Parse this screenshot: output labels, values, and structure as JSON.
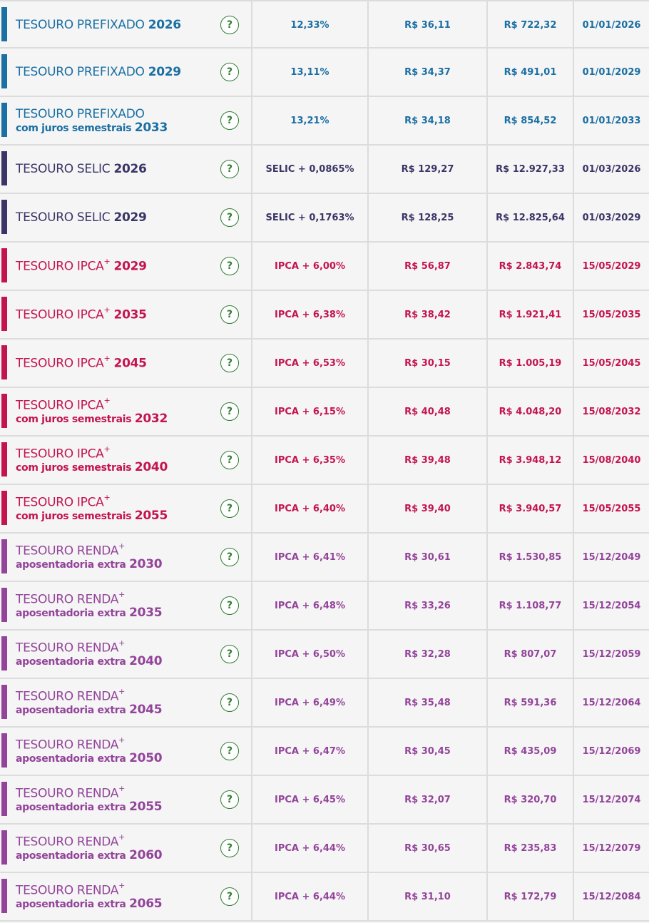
{
  "colors": {
    "prefixado": "#1a6fa3",
    "selic": "#3a3566",
    "ipca": "#c4144f",
    "renda": "#93449a",
    "help": "#2e7d32"
  },
  "icons": {
    "help": "question-mark-circle-icon"
  },
  "rows": [
    {
      "group": "prefixado",
      "title": "TESOURO PREFIXADO",
      "sup": "",
      "sub": "",
      "year": "2026",
      "rate": "12,33%",
      "min": "R$ 36,11",
      "unit": "R$ 722,32",
      "due": "01/01/2026",
      "help": "?"
    },
    {
      "group": "prefixado",
      "title": "TESOURO PREFIXADO",
      "sup": "",
      "sub": "",
      "year": "2029",
      "rate": "13,11%",
      "min": "R$ 34,37",
      "unit": "R$ 491,01",
      "due": "01/01/2029",
      "help": "?"
    },
    {
      "group": "prefixado",
      "title": "TESOURO PREFIXADO",
      "sup": "",
      "sub": "com juros semestrais",
      "year": "2033",
      "rate": "13,21%",
      "min": "R$ 34,18",
      "unit": "R$ 854,52",
      "due": "01/01/2033",
      "help": "?"
    },
    {
      "group": "selic",
      "title": "TESOURO SELIC",
      "sup": "",
      "sub": "",
      "year": "2026",
      "rate": "SELIC + 0,0865%",
      "min": "R$ 129,27",
      "unit": "R$ 12.927,33",
      "due": "01/03/2026",
      "help": "?"
    },
    {
      "group": "selic",
      "title": "TESOURO SELIC",
      "sup": "",
      "sub": "",
      "year": "2029",
      "rate": "SELIC + 0,1763%",
      "min": "R$ 128,25",
      "unit": "R$ 12.825,64",
      "due": "01/03/2029",
      "help": "?"
    },
    {
      "group": "ipca",
      "title": "TESOURO IPCA",
      "sup": "+",
      "sub": "",
      "year": "2029",
      "rate": "IPCA + 6,00%",
      "min": "R$ 56,87",
      "unit": "R$ 2.843,74",
      "due": "15/05/2029",
      "help": "?"
    },
    {
      "group": "ipca",
      "title": "TESOURO IPCA",
      "sup": "+",
      "sub": "",
      "year": "2035",
      "rate": "IPCA + 6,38%",
      "min": "R$ 38,42",
      "unit": "R$ 1.921,41",
      "due": "15/05/2035",
      "help": "?"
    },
    {
      "group": "ipca",
      "title": "TESOURO IPCA",
      "sup": "+",
      "sub": "",
      "year": "2045",
      "rate": "IPCA + 6,53%",
      "min": "R$ 30,15",
      "unit": "R$ 1.005,19",
      "due": "15/05/2045",
      "help": "?"
    },
    {
      "group": "ipca",
      "title": "TESOURO IPCA",
      "sup": "+",
      "sub": "com juros semestrais",
      "year": "2032",
      "rate": "IPCA + 6,15%",
      "min": "R$ 40,48",
      "unit": "R$ 4.048,20",
      "due": "15/08/2032",
      "help": "?"
    },
    {
      "group": "ipca",
      "title": "TESOURO IPCA",
      "sup": "+",
      "sub": "com juros semestrais",
      "year": "2040",
      "rate": "IPCA + 6,35%",
      "min": "R$ 39,48",
      "unit": "R$ 3.948,12",
      "due": "15/08/2040",
      "help": "?"
    },
    {
      "group": "ipca",
      "title": "TESOURO IPCA",
      "sup": "+",
      "sub": "com juros semestrais",
      "year": "2055",
      "rate": "IPCA + 6,40%",
      "min": "R$ 39,40",
      "unit": "R$ 3.940,57",
      "due": "15/05/2055",
      "help": "?"
    },
    {
      "group": "renda",
      "title": "TESOURO RENDA",
      "sup": "+",
      "sub": "aposentadoria extra",
      "year": "2030",
      "rate": "IPCA + 6,41%",
      "min": "R$ 30,61",
      "unit": "R$ 1.530,85",
      "due": "15/12/2049",
      "help": "?"
    },
    {
      "group": "renda",
      "title": "TESOURO RENDA",
      "sup": "+",
      "sub": "aposentadoria extra",
      "year": "2035",
      "rate": "IPCA + 6,48%",
      "min": "R$ 33,26",
      "unit": "R$ 1.108,77",
      "due": "15/12/2054",
      "help": "?"
    },
    {
      "group": "renda",
      "title": "TESOURO RENDA",
      "sup": "+",
      "sub": "aposentadoria extra",
      "year": "2040",
      "rate": "IPCA + 6,50%",
      "min": "R$ 32,28",
      "unit": "R$ 807,07",
      "due": "15/12/2059",
      "help": "?"
    },
    {
      "group": "renda",
      "title": "TESOURO RENDA",
      "sup": "+",
      "sub": "aposentadoria extra",
      "year": "2045",
      "rate": "IPCA + 6,49%",
      "min": "R$ 35,48",
      "unit": "R$ 591,36",
      "due": "15/12/2064",
      "help": "?"
    },
    {
      "group": "renda",
      "title": "TESOURO RENDA",
      "sup": "+",
      "sub": "aposentadoria extra",
      "year": "2050",
      "rate": "IPCA + 6,47%",
      "min": "R$ 30,45",
      "unit": "R$ 435,09",
      "due": "15/12/2069",
      "help": "?"
    },
    {
      "group": "renda",
      "title": "TESOURO RENDA",
      "sup": "+",
      "sub": "aposentadoria extra",
      "year": "2055",
      "rate": "IPCA + 6,45%",
      "min": "R$ 32,07",
      "unit": "R$ 320,70",
      "due": "15/12/2074",
      "help": "?"
    },
    {
      "group": "renda",
      "title": "TESOURO RENDA",
      "sup": "+",
      "sub": "aposentadoria extra",
      "year": "2060",
      "rate": "IPCA + 6,44%",
      "min": "R$ 30,65",
      "unit": "R$ 235,83",
      "due": "15/12/2079",
      "help": "?"
    },
    {
      "group": "renda",
      "title": "TESOURO RENDA",
      "sup": "+",
      "sub": "aposentadoria extra",
      "year": "2065",
      "rate": "IPCA + 6,44%",
      "min": "R$ 31,10",
      "unit": "R$ 172,79",
      "due": "15/12/2084",
      "help": "?"
    }
  ]
}
